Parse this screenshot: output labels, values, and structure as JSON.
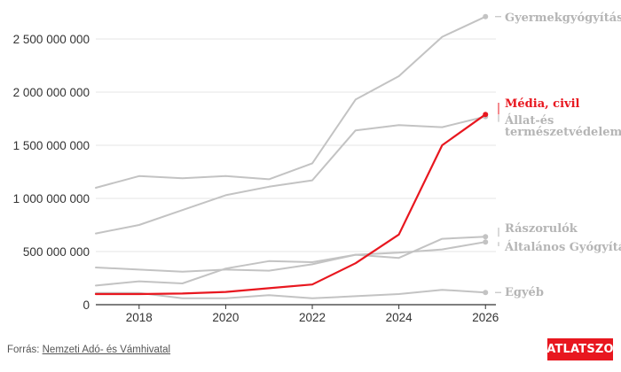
{
  "colors": {
    "grey": "#c3c3c3",
    "label_grey": "#b5b5b5",
    "highlight": "#e8171f",
    "axis": "#333333"
  },
  "source": {
    "prefix": "Forrás: ",
    "link": "Nemzeti Adó- és Vámhivatal"
  },
  "logo": {
    "text": "ATLATSZO"
  },
  "chart_data": {
    "type": "line",
    "title": "",
    "xlabel": "",
    "ylabel": "",
    "x": [
      2017,
      2018,
      2019,
      2020,
      2021,
      2022,
      2023,
      2024,
      2025,
      2026
    ],
    "xlim": [
      2017,
      2026.2
    ],
    "ylim": [
      0,
      2750000000
    ],
    "xticks": [
      2018,
      2020,
      2022,
      2024,
      2026
    ],
    "yticks": [
      0,
      500000000,
      1000000000,
      1500000000,
      2000000000,
      2500000000
    ],
    "ytick_labels": [
      "0",
      "500 000 000",
      "1 000 000 000",
      "1 500 000 000",
      "2 000 000 000",
      "2 500 000 000"
    ],
    "grid": "horizontal",
    "legend": "direct labels at line ends (right)",
    "series": [
      {
        "name": "Gyermekgyógyítás",
        "highlight": false,
        "values": [
          1100000000,
          1210000000,
          1190000000,
          1210000000,
          1180000000,
          1330000000,
          1930000000,
          2150000000,
          2520000000,
          2710000000
        ]
      },
      {
        "name": "Állat-és természetvédelem",
        "highlight": false,
        "values": [
          670000000,
          750000000,
          890000000,
          1030000000,
          1110000000,
          1170000000,
          1640000000,
          1690000000,
          1670000000,
          1770000000
        ]
      },
      {
        "name": "Rászorulók",
        "highlight": false,
        "values": [
          180000000,
          220000000,
          200000000,
          340000000,
          410000000,
          400000000,
          470000000,
          440000000,
          620000000,
          640000000
        ]
      },
      {
        "name": "Általános Gyógyítás",
        "highlight": false,
        "values": [
          350000000,
          330000000,
          310000000,
          330000000,
          320000000,
          380000000,
          470000000,
          490000000,
          520000000,
          590000000
        ]
      },
      {
        "name": "Egyéb",
        "highlight": false,
        "values": [
          110000000,
          110000000,
          60000000,
          60000000,
          90000000,
          60000000,
          80000000,
          100000000,
          140000000,
          115000000
        ]
      },
      {
        "name": "Média, civil",
        "highlight": true,
        "values": [
          100000000,
          100000000,
          105000000,
          120000000,
          155000000,
          190000000,
          390000000,
          660000000,
          1500000000,
          1790000000
        ]
      }
    ]
  }
}
